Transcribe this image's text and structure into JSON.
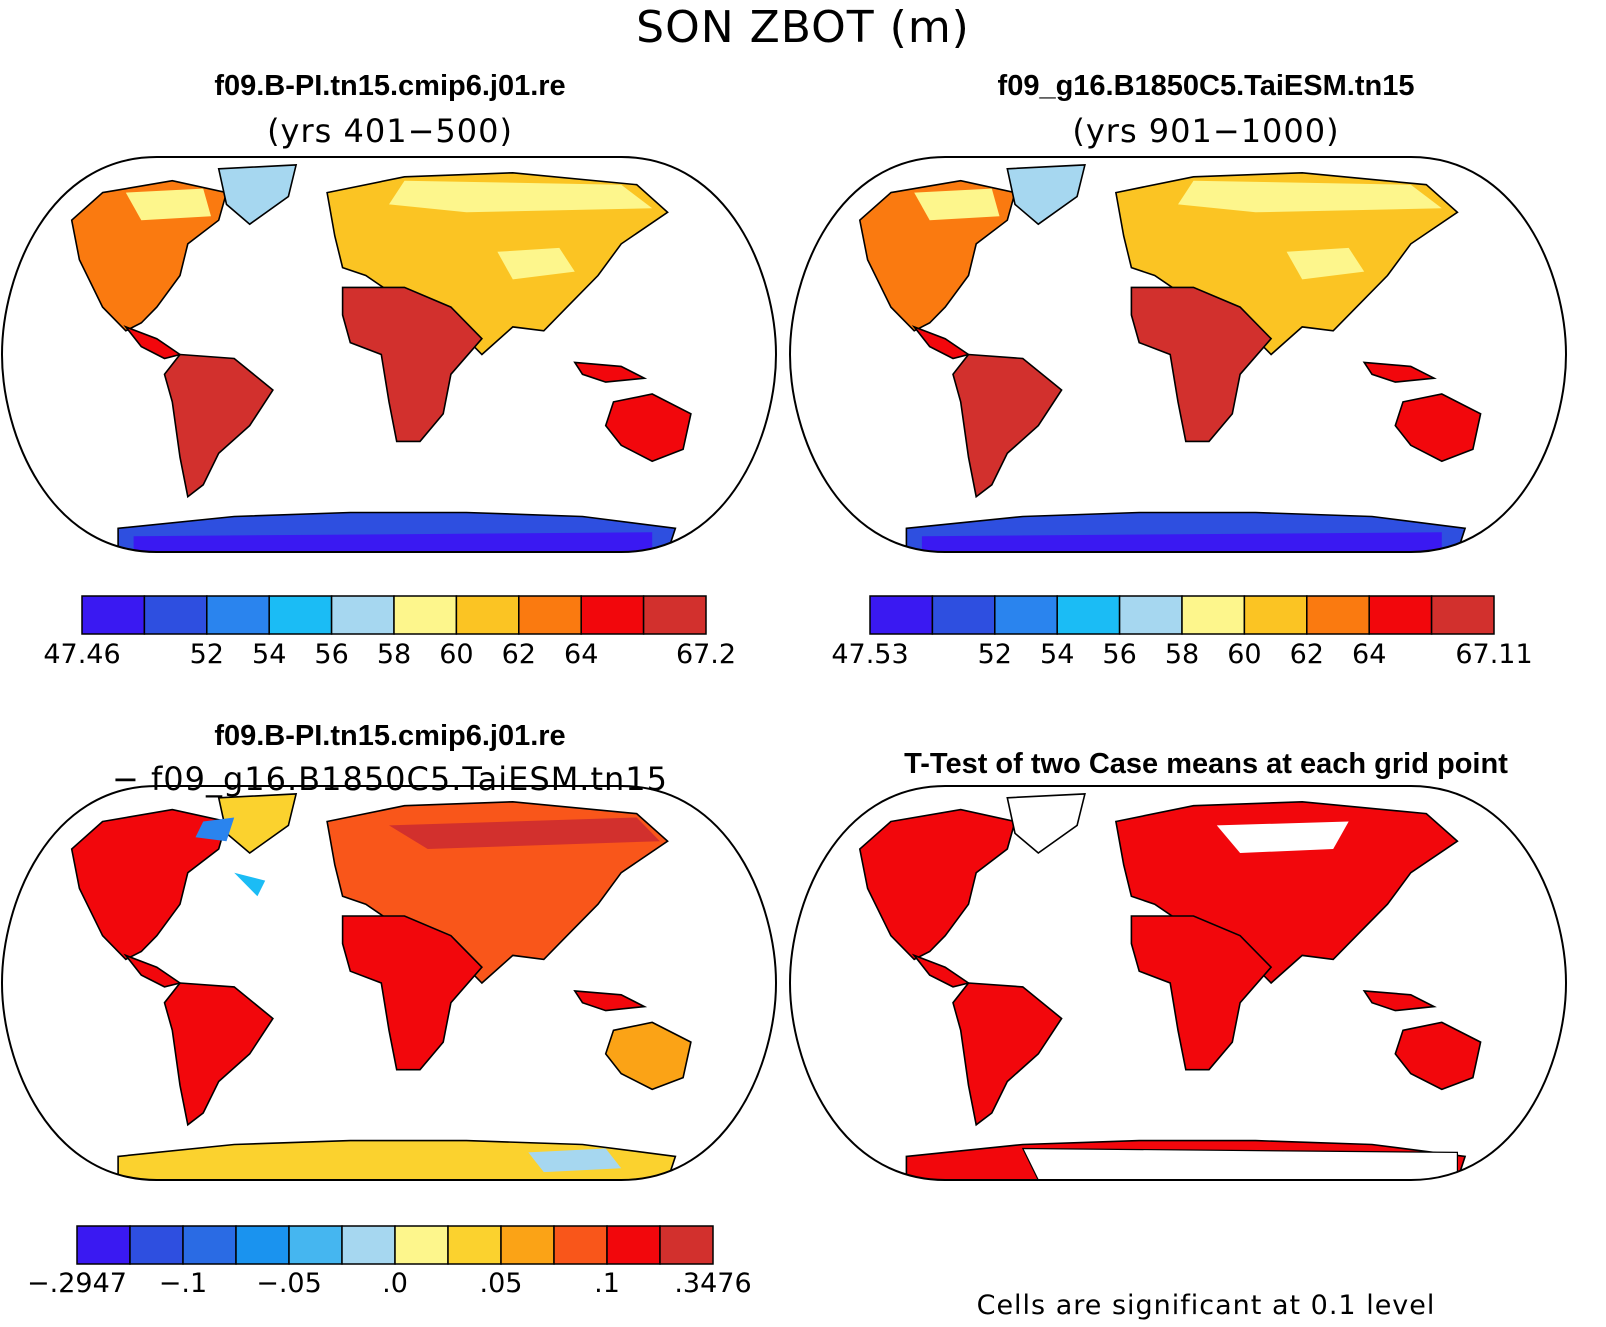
{
  "title": "SON ZBOT (m)",
  "panels": [
    {
      "title": "f09.B-PI.tn15.cmip6.j01.re",
      "subtitle": "(yrs 401−500)",
      "colorbar": {
        "colors": [
          "#3a19f2",
          "#2e4fe0",
          "#2a84ee",
          "#1bbcf5",
          "#a6d7f0",
          "#fdf68c",
          "#fbc423",
          "#fa7a10",
          "#f2070c",
          "#d2302d"
        ],
        "labels": [
          "47.46",
          "52",
          "54",
          "56",
          "58",
          "60",
          "62",
          "64",
          "67.2"
        ]
      }
    },
    {
      "title": "f09_g16.B1850C5.TaiESM.tn15",
      "subtitle": "(yrs 901−1000)",
      "colorbar": {
        "colors": [
          "#3a19f2",
          "#2e4fe0",
          "#2a84ee",
          "#1bbcf5",
          "#a6d7f0",
          "#fdf68c",
          "#fbc423",
          "#fa7a10",
          "#f2070c",
          "#d2302d"
        ],
        "labels": [
          "47.53",
          "52",
          "54",
          "56",
          "58",
          "60",
          "62",
          "64",
          "67.11"
        ]
      }
    },
    {
      "title": "f09.B-PI.tn15.cmip6.j01.re",
      "subtitle": "− f09_g16.B1850C5.TaiESM.tn15",
      "colorbar": {
        "colors": [
          "#3a19f2",
          "#2e4fe0",
          "#2a6be4",
          "#1a93ef",
          "#45b6f0",
          "#a6d7f0",
          "#fdf68c",
          "#fbd22e",
          "#fba316",
          "#f9561a",
          "#f2070c",
          "#d2302d"
        ],
        "labels": [
          "−.2947",
          "−.1",
          "−.05",
          ".0",
          ".05",
          ".1",
          ".3476"
        ]
      }
    },
    {
      "title": "T-Test of two Case means at each grid point",
      "note": "Cells are significant at 0.1 level",
      "significant_color": "#f2070c"
    }
  ]
}
